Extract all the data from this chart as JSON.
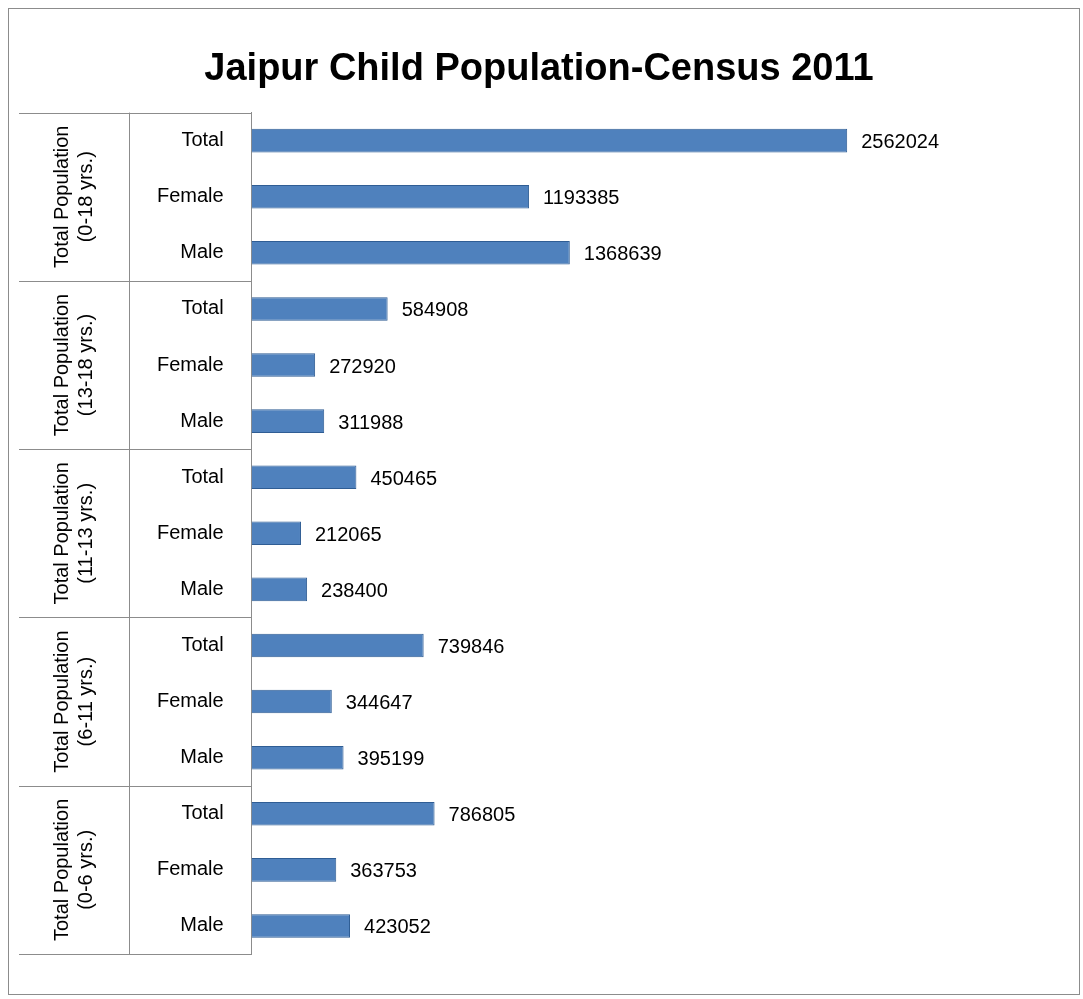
{
  "chart_data": {
    "type": "bar",
    "orientation": "horizontal",
    "title": "Jaipur Child Population-Census 2011",
    "categories": [
      "Total",
      "Female",
      "Male",
      "Total",
      "Female",
      "Male",
      "Total",
      "Female",
      "Male",
      "Total",
      "Female",
      "Male",
      "Total",
      "Female",
      "Male"
    ],
    "values": [
      2562024,
      1193385,
      1368639,
      584908,
      272920,
      311988,
      450465,
      212065,
      238400,
      739846,
      344647,
      395199,
      786805,
      363753,
      423052
    ],
    "color": "#4f81bd",
    "annotations": [
      "Total Population (0-18 yrs.)",
      "Total Population (13-18 yrs.)",
      "Total Population (11-13 yrs.)",
      "Total Population (6-11 yrs.)",
      "Total Population (0-6 yrs.)"
    ],
    "data_labels": true,
    "legend": false
  }
}
